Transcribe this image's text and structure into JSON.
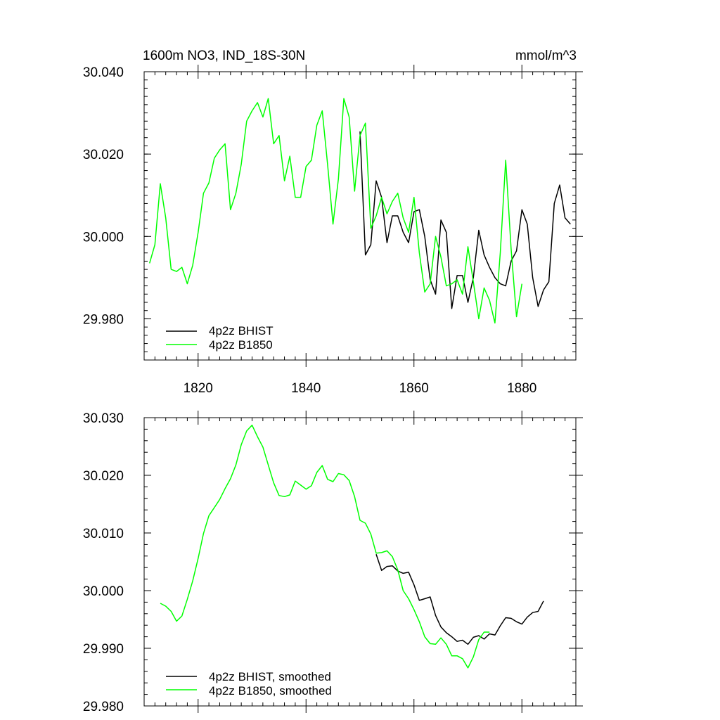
{
  "chart_data": [
    {
      "type": "line",
      "title": "1600m NO3, IND_18S-30N",
      "units": "mmol/m^3",
      "xlabel": "",
      "ylabel": "",
      "xlim": [
        1810,
        1890
      ],
      "ylim": [
        29.97,
        30.04
      ],
      "x_ticks": [
        1820,
        1840,
        1860,
        1880
      ],
      "x_tick_labels": [
        "1820",
        "1840",
        "1860",
        "1880"
      ],
      "y_ticks": [
        29.98,
        30.0,
        30.02,
        30.04
      ],
      "y_tick_labels": [
        "29.980",
        "30.000",
        "30.020",
        "30.040"
      ],
      "legend_position": "bottom-left",
      "series": [
        {
          "name": "4p2z BHIST",
          "label": "4p2z BHIST",
          "color": "#000000",
          "x_start": 1850,
          "values": [
            30.0255,
            29.9955,
            29.998,
            30.0135,
            30.0095,
            29.9985,
            30.005,
            30.005,
            30.001,
            29.9985,
            30.006,
            30.0065,
            30.0,
            29.9895,
            29.986,
            30.004,
            30.001,
            29.9825,
            29.9905,
            29.9905,
            29.984,
            29.99,
            30.0015,
            29.9955,
            29.9925,
            29.99,
            29.9885,
            29.988,
            29.994,
            29.9965,
            30.0065,
            30.003,
            29.99,
            29.983,
            29.987,
            29.989,
            30.008,
            30.0125,
            30.0045,
            30.003
          ]
        },
        {
          "name": "4p2z B1850",
          "label": "4p2z B1850",
          "color": "#00ff00",
          "x_start": 1811,
          "values": [
            29.9935,
            29.998,
            30.0128,
            30.0045,
            29.992,
            29.9915,
            29.9925,
            29.9885,
            29.993,
            30.001,
            30.0105,
            30.013,
            30.019,
            30.021,
            30.0225,
            30.0065,
            30.0105,
            30.0175,
            30.028,
            30.0305,
            30.0325,
            30.029,
            30.0335,
            30.0225,
            30.0245,
            30.0135,
            30.0195,
            30.0095,
            30.0095,
            30.017,
            30.0185,
            30.027,
            30.0305,
            30.0175,
            30.003,
            30.014,
            30.0335,
            30.029,
            30.011,
            30.0245,
            30.0275,
            30.002,
            30.005,
            30.0095,
            30.0055,
            30.0085,
            30.0105,
            30.0045,
            30.001,
            30.0095,
            29.996,
            29.9865,
            29.9885,
            30.0,
            29.995,
            29.988,
            29.9885,
            29.9895,
            29.986,
            29.9975,
            29.989,
            29.98,
            29.9875,
            29.9845,
            29.979,
            29.996,
            30.0185,
            29.997,
            29.9805,
            29.9885
          ]
        }
      ]
    },
    {
      "type": "line",
      "title": "",
      "xlabel": "",
      "ylabel": "",
      "xlim": [
        1810,
        1890
      ],
      "ylim": [
        29.98,
        30.03
      ],
      "x_ticks": [
        1820,
        1840,
        1860,
        1880
      ],
      "x_tick_labels": [],
      "y_ticks": [
        29.98,
        29.99,
        30.0,
        30.01,
        30.02,
        30.03
      ],
      "y_tick_labels": [
        "29.980",
        "29.990",
        "30.000",
        "30.010",
        "30.020",
        "30.030"
      ],
      "legend_position": "bottom-left",
      "series": [
        {
          "name": "4p2z BHIST, smoothed",
          "label": "4p2z BHIST, smoothed",
          "color": "#000000",
          "x_start": 1853,
          "values": [
            30.0063,
            30.0035,
            30.0042,
            30.0043,
            30.0034,
            30.003,
            30.0032,
            30.001,
            29.9983,
            29.9986,
            29.9989,
            29.9957,
            29.9937,
            29.9927,
            29.992,
            29.9912,
            29.9914,
            29.9907,
            29.9919,
            29.9922,
            29.9916,
            29.9925,
            29.9923,
            29.9939,
            29.9953,
            29.9952,
            29.9946,
            29.9942,
            29.9954,
            29.9962,
            29.9964,
            29.9982
          ]
        },
        {
          "name": "4p2z B1850, smoothed",
          "label": "4p2z B1850, smoothed",
          "color": "#00ff00",
          "x_start": 1813,
          "values": [
            29.9978,
            29.9973,
            29.9964,
            29.9947,
            29.9956,
            29.9985,
            30.0017,
            30.0056,
            30.0099,
            30.013,
            30.0144,
            30.0158,
            30.0177,
            30.0194,
            30.0218,
            30.0253,
            30.0277,
            30.0287,
            30.0267,
            30.0249,
            30.0218,
            30.0187,
            30.0165,
            30.0163,
            30.0166,
            30.019,
            30.0183,
            30.0176,
            30.0182,
            30.0205,
            30.0217,
            30.0193,
            30.0189,
            30.0203,
            30.0201,
            30.0191,
            30.0163,
            30.0122,
            30.0117,
            30.0098,
            30.0065,
            30.0066,
            30.0069,
            30.0059,
            30.0036,
            30.0,
            29.9986,
            29.9967,
            29.9946,
            29.992,
            29.9908,
            29.9907,
            29.9918,
            29.9907,
            29.9887,
            29.9887,
            29.9882,
            29.9866,
            29.9885,
            29.9915,
            29.9928,
            29.9928
          ]
        }
      ]
    }
  ]
}
